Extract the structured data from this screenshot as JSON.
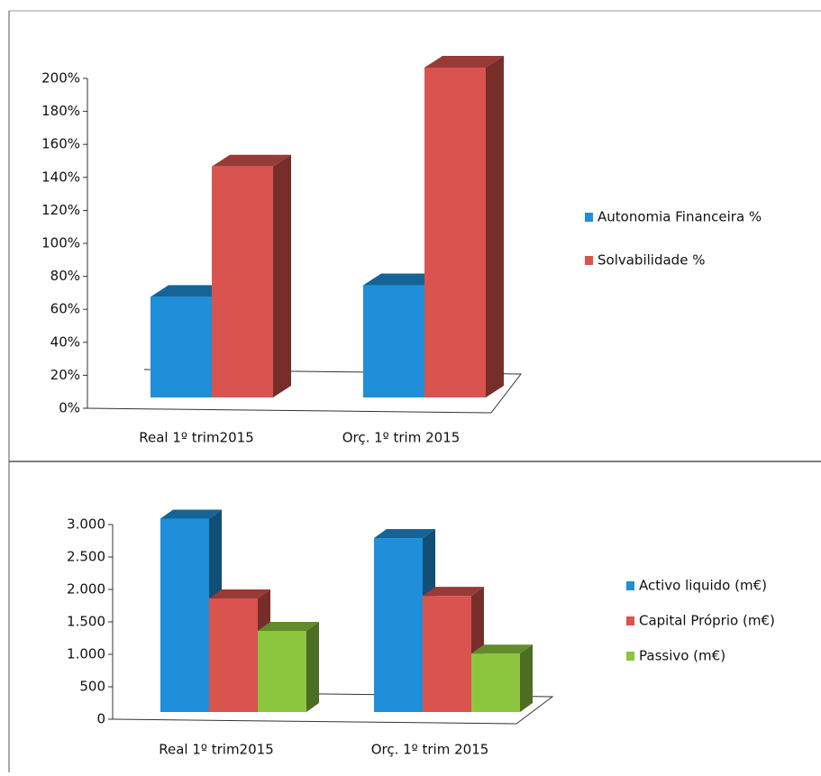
{
  "chart_data": [
    {
      "type": "bar3d",
      "categories": [
        "Real 1º trim2015",
        "Orç. 1º trim 2015"
      ],
      "series": [
        {
          "name": "Autonomia  Financeira %",
          "color": "#1e8fd8",
          "values": [
            61,
            68
          ]
        },
        {
          "name": "Solvabilidade %",
          "color": "#d9534f",
          "values": [
            140,
            200
          ]
        }
      ],
      "ylim": [
        0,
        200
      ],
      "yticks": [
        {
          "value": 0,
          "label": "0%"
        },
        {
          "value": 20,
          "label": "20%"
        },
        {
          "value": 40,
          "label": "40%"
        },
        {
          "value": 60,
          "label": "60%"
        },
        {
          "value": 80,
          "label": "80%"
        },
        {
          "value": 100,
          "label": "100%"
        },
        {
          "value": 120,
          "label": "120%"
        },
        {
          "value": 140,
          "label": "140%"
        },
        {
          "value": 160,
          "label": "160%"
        },
        {
          "value": 180,
          "label": "180%"
        },
        {
          "value": 200,
          "label": "200%"
        }
      ],
      "legend": "right"
    },
    {
      "type": "bar3d",
      "categories": [
        "Real 1º trim2015",
        "Orç. 1º trim 2015"
      ],
      "series": [
        {
          "name": "Activo liquido  (m€)",
          "color": "#1e8fd8",
          "values": [
            2980,
            2680
          ]
        },
        {
          "name": "Capital Próprio  (m€)",
          "color": "#d9534f",
          "values": [
            1750,
            1790
          ]
        },
        {
          "name": "Passivo (m€)",
          "color": "#8cc63f",
          "values": [
            1250,
            900
          ]
        }
      ],
      "ylim": [
        0,
        3000
      ],
      "yticks": [
        0,
        500,
        {
          "value": 1000,
          "label": "1.000"
        },
        {
          "value": 1500,
          "label": "1.500"
        },
        {
          "value": 2000,
          "label": "2.000"
        },
        {
          "value": 2500,
          "label": "2.500"
        },
        {
          "value": 3000,
          "label": "3.000"
        }
      ],
      "legend": "right"
    }
  ]
}
